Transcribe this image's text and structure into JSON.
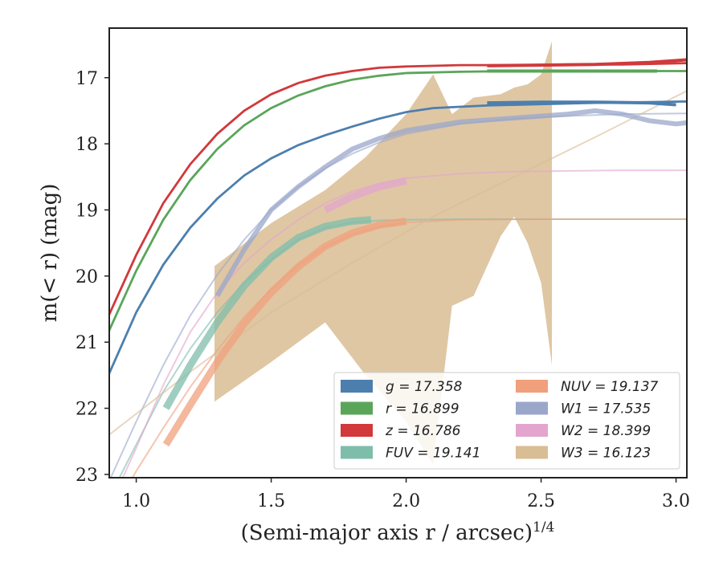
{
  "chart_data": {
    "type": "line",
    "title": "",
    "xlabel": "(Semi-major axis r / arcsec)",
    "xlabel_exponent": "1/4",
    "ylabel": "m(< r) (mag)",
    "xlim": [
      0.9,
      3.04
    ],
    "ylim": [
      23.05,
      16.25
    ],
    "y_inverted": true,
    "grid": false,
    "legend_position": "lower-right",
    "x_ticks": [
      "1.0",
      "1.5",
      "2.0",
      "2.5",
      "3.0"
    ],
    "y_ticks": [
      "17",
      "18",
      "19",
      "20",
      "21",
      "22",
      "23"
    ],
    "series": [
      {
        "name": "g",
        "label": "g = 17.358",
        "color": "#4c7fae",
        "model_x": [
          0.9,
          1.0,
          1.1,
          1.2,
          1.3,
          1.4,
          1.5,
          1.6,
          1.7,
          1.8,
          1.9,
          2.0,
          2.1,
          2.3,
          2.5,
          2.7,
          2.9,
          3.04
        ],
        "model_y": [
          21.47,
          20.55,
          19.83,
          19.27,
          18.83,
          18.48,
          18.22,
          18.02,
          17.87,
          17.74,
          17.62,
          17.52,
          17.46,
          17.42,
          17.4,
          17.38,
          17.37,
          17.36
        ],
        "obs_x": [
          2.3,
          2.5,
          2.7,
          2.9,
          3.0
        ],
        "obs_y": [
          17.38,
          17.37,
          17.37,
          17.38,
          17.41
        ]
      },
      {
        "name": "r",
        "label": "r = 16.899",
        "color": "#5aa55a",
        "model_x": [
          0.9,
          1.0,
          1.1,
          1.2,
          1.3,
          1.4,
          1.5,
          1.6,
          1.7,
          1.8,
          1.9,
          2.0,
          2.2,
          2.4,
          2.6,
          2.8,
          3.04
        ],
        "model_y": [
          20.82,
          19.92,
          19.15,
          18.55,
          18.08,
          17.72,
          17.46,
          17.27,
          17.13,
          17.03,
          16.97,
          16.93,
          16.91,
          16.9,
          16.9,
          16.9,
          16.9
        ],
        "obs_x": [
          2.3,
          2.5,
          2.7,
          2.93
        ],
        "obs_y": [
          16.9,
          16.9,
          16.9,
          16.9
        ]
      },
      {
        "name": "z",
        "label": "z = 16.786",
        "color": "#d1393b",
        "model_x": [
          0.9,
          1.0,
          1.1,
          1.2,
          1.3,
          1.4,
          1.5,
          1.6,
          1.7,
          1.8,
          1.9,
          2.0,
          2.2,
          2.4,
          2.6,
          2.8,
          3.04
        ],
        "model_y": [
          20.58,
          19.68,
          18.9,
          18.31,
          17.85,
          17.5,
          17.25,
          17.08,
          16.97,
          16.9,
          16.85,
          16.83,
          16.81,
          16.81,
          16.8,
          16.8,
          16.78
        ],
        "obs_x": [
          2.3,
          2.5,
          2.7,
          2.9,
          3.04
        ],
        "obs_y": [
          16.82,
          16.81,
          16.8,
          16.77,
          16.73
        ]
      },
      {
        "name": "FUV",
        "label": "FUV = 19.141",
        "color": "#7fbdab",
        "model_x": [
          0.9,
          1.0,
          1.1,
          1.2,
          1.3,
          1.4,
          1.5,
          1.6,
          1.7,
          1.8,
          1.9,
          2.0,
          2.2,
          2.5,
          3.04
        ],
        "model_y": [
          23.35,
          22.55,
          21.75,
          21.1,
          20.55,
          20.1,
          19.75,
          19.45,
          19.27,
          19.19,
          19.16,
          19.15,
          19.14,
          19.14,
          19.14
        ],
        "obs_x": [
          1.11,
          1.2,
          1.3,
          1.4,
          1.5,
          1.6,
          1.7,
          1.8,
          1.87
        ],
        "obs_y": [
          22.0,
          21.35,
          20.7,
          20.15,
          19.72,
          19.42,
          19.25,
          19.17,
          19.15
        ]
      },
      {
        "name": "NUV",
        "label": "NUV = 19.137",
        "color": "#f0a07c",
        "model_x": [
          0.9,
          1.0,
          1.1,
          1.2,
          1.3,
          1.4,
          1.5,
          1.6,
          1.7,
          1.8,
          1.9,
          2.0,
          2.2,
          2.5,
          3.04
        ],
        "model_y": [
          23.65,
          22.95,
          22.3,
          21.68,
          21.12,
          20.62,
          20.2,
          19.84,
          19.56,
          19.37,
          19.25,
          19.19,
          19.15,
          19.14,
          19.14
        ],
        "obs_x": [
          1.11,
          1.2,
          1.3,
          1.4,
          1.5,
          1.6,
          1.7,
          1.8,
          1.9,
          2.0
        ],
        "obs_y": [
          22.55,
          21.95,
          21.3,
          20.72,
          20.25,
          19.86,
          19.55,
          19.35,
          19.23,
          19.17
        ]
      },
      {
        "name": "W1",
        "label": "W1 = 17.535",
        "color": "#9aa7cb",
        "model_x": [
          0.9,
          1.0,
          1.1,
          1.2,
          1.3,
          1.4,
          1.5,
          1.6,
          1.7,
          1.8,
          1.9,
          2.0,
          2.2,
          2.4,
          2.6,
          2.8,
          3.04
        ],
        "model_y": [
          23.1,
          22.2,
          21.35,
          20.6,
          19.98,
          19.45,
          19.0,
          18.65,
          18.37,
          18.15,
          17.98,
          17.85,
          17.7,
          17.62,
          17.58,
          17.55,
          17.54
        ],
        "obs_x": [
          1.3,
          1.4,
          1.5,
          1.6,
          1.7,
          1.8,
          1.9,
          2.0,
          2.2,
          2.4,
          2.6,
          2.7,
          2.8,
          2.9,
          3.0,
          3.04
        ],
        "obs_y": [
          20.3,
          19.6,
          19.0,
          18.65,
          18.35,
          18.08,
          17.92,
          17.8,
          17.67,
          17.61,
          17.55,
          17.5,
          17.55,
          17.65,
          17.7,
          17.68
        ]
      },
      {
        "name": "W2",
        "label": "W2 = 18.399",
        "color": "#e3a5cd",
        "model_x": [
          0.9,
          1.0,
          1.1,
          1.2,
          1.3,
          1.4,
          1.5,
          1.6,
          1.7,
          1.8,
          1.9,
          2.0,
          2.2,
          2.4,
          2.6,
          2.8,
          3.04
        ],
        "model_y": [
          23.5,
          22.6,
          21.65,
          20.85,
          20.25,
          19.8,
          19.45,
          19.15,
          18.9,
          18.72,
          18.6,
          18.52,
          18.45,
          18.42,
          18.41,
          18.4,
          18.4
        ],
        "obs_x": [
          1.7,
          1.8,
          1.9,
          2.0
        ],
        "obs_y": [
          19.0,
          18.8,
          18.65,
          18.56
        ]
      },
      {
        "name": "W3",
        "label": "W3 = 16.123",
        "color": "#d9bd94",
        "model_x": [
          0.9,
          1.2,
          1.5,
          1.8,
          2.1,
          2.4,
          2.7,
          3.04
        ],
        "model_y": [
          22.4,
          21.45,
          20.55,
          19.8,
          19.1,
          18.5,
          17.9,
          17.2
        ],
        "band_x": [
          1.29,
          1.5,
          1.7,
          1.85,
          2.0,
          2.1,
          2.17,
          2.25,
          2.35,
          2.4,
          2.45,
          2.5,
          2.54
        ],
        "band_upper": [
          19.85,
          19.2,
          18.7,
          18.2,
          17.55,
          16.95,
          17.55,
          17.3,
          17.25,
          17.15,
          17.1,
          16.95,
          16.45
        ],
        "band_lower": [
          21.9,
          21.3,
          20.7,
          21.5,
          22.2,
          22.85,
          20.45,
          20.3,
          19.4,
          19.1,
          19.5,
          20.1,
          21.35
        ]
      }
    ]
  }
}
